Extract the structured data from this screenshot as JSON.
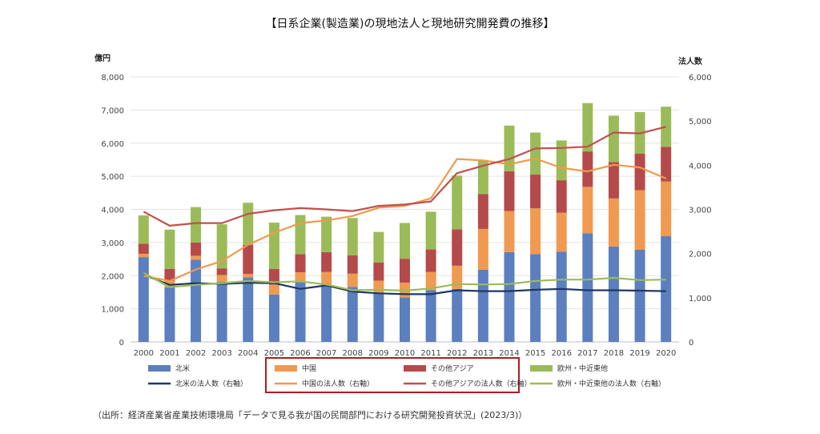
{
  "chart_data": {
    "type": "bar",
    "title": "【日系企業(製造業)の現地法人と現地研究開発費の推移】",
    "ylabel": "億円",
    "y2label": "法人数",
    "ylim": [
      0,
      8000
    ],
    "y2lim": [
      0,
      6000
    ],
    "yticks": [
      "0",
      "1,000",
      "2,000",
      "3,000",
      "4,000",
      "5,000",
      "6,000",
      "7,000",
      "8,000"
    ],
    "y2ticks": [
      "0",
      "1,000",
      "2,000",
      "3,000",
      "4,000",
      "5,000",
      "6,000"
    ],
    "categories": [
      "2000",
      "2001",
      "2002",
      "2003",
      "2004",
      "2005",
      "2006",
      "2007",
      "2008",
      "2009",
      "2010",
      "2011",
      "2012",
      "2013",
      "2014",
      "2015",
      "2016",
      "2017",
      "2018",
      "2019",
      "2020"
    ],
    "bar_series": [
      {
        "name": "北米",
        "color": "#5b7fbf",
        "values": [
          2560,
          1650,
          2480,
          1820,
          1950,
          1430,
          1800,
          1710,
          1660,
          1450,
          1340,
          1560,
          1600,
          2180,
          2710,
          2650,
          2720,
          3280,
          2880,
          2780,
          3190
        ]
      },
      {
        "name": "中国",
        "color": "#ef9a50",
        "values": [
          100,
          200,
          120,
          200,
          100,
          300,
          300,
          400,
          400,
          400,
          450,
          550,
          700,
          1230,
          1240,
          1380,
          1180,
          1400,
          1450,
          1800,
          1650
        ]
      },
      {
        "name": "その他アジア",
        "color": "#b54a4a",
        "values": [
          300,
          350,
          400,
          200,
          880,
          470,
          550,
          600,
          550,
          550,
          720,
          680,
          1100,
          1050,
          1200,
          1020,
          980,
          1070,
          1100,
          1100,
          1050
        ]
      },
      {
        "name": "欧州・中近東他",
        "color": "#9bbb59",
        "values": [
          860,
          1190,
          1070,
          1330,
          1270,
          1400,
          1180,
          1070,
          1130,
          920,
          1080,
          1140,
          1620,
          1030,
          1380,
          1270,
          1200,
          1460,
          1400,
          1260,
          1210
        ]
      }
    ],
    "line_series": [
      {
        "name": "北米の法人数（右軸）",
        "color": "#1f3864",
        "values": [
          1520,
          1290,
          1330,
          1310,
          1340,
          1330,
          1200,
          1280,
          1140,
          1100,
          1080,
          1080,
          1170,
          1150,
          1150,
          1180,
          1200,
          1170,
          1170,
          1160,
          1150
        ]
      },
      {
        "name": "中国の法人数（右軸）",
        "color": "#ed9a4e",
        "values": [
          1500,
          1380,
          1640,
          1830,
          2200,
          2470,
          2690,
          2750,
          2850,
          3040,
          3080,
          3250,
          4140,
          4110,
          4020,
          4150,
          3940,
          3860,
          4010,
          3950,
          3700
        ]
      },
      {
        "name": "その他アジアの法人数（右軸）",
        "color": "#c0504d",
        "values": [
          2950,
          2630,
          2690,
          2690,
          2900,
          2980,
          3030,
          3000,
          2960,
          3080,
          3110,
          3180,
          3820,
          3990,
          4140,
          4380,
          4390,
          4420,
          4740,
          4720,
          4870
        ]
      },
      {
        "name": "欧州・中近東他の法人数（右軸）",
        "color": "#9bbb59",
        "values": [
          1560,
          1240,
          1290,
          1330,
          1380,
          1350,
          1370,
          1300,
          1170,
          1180,
          1160,
          1210,
          1310,
          1300,
          1310,
          1380,
          1410,
          1410,
          1450,
          1400,
          1410
        ]
      }
    ],
    "legend_position": "bottom",
    "source_note": "（出所：経済産業省産業技術環境局「データで見る我が国の民間部門における研究開発投資状況」(2023/3)）"
  }
}
